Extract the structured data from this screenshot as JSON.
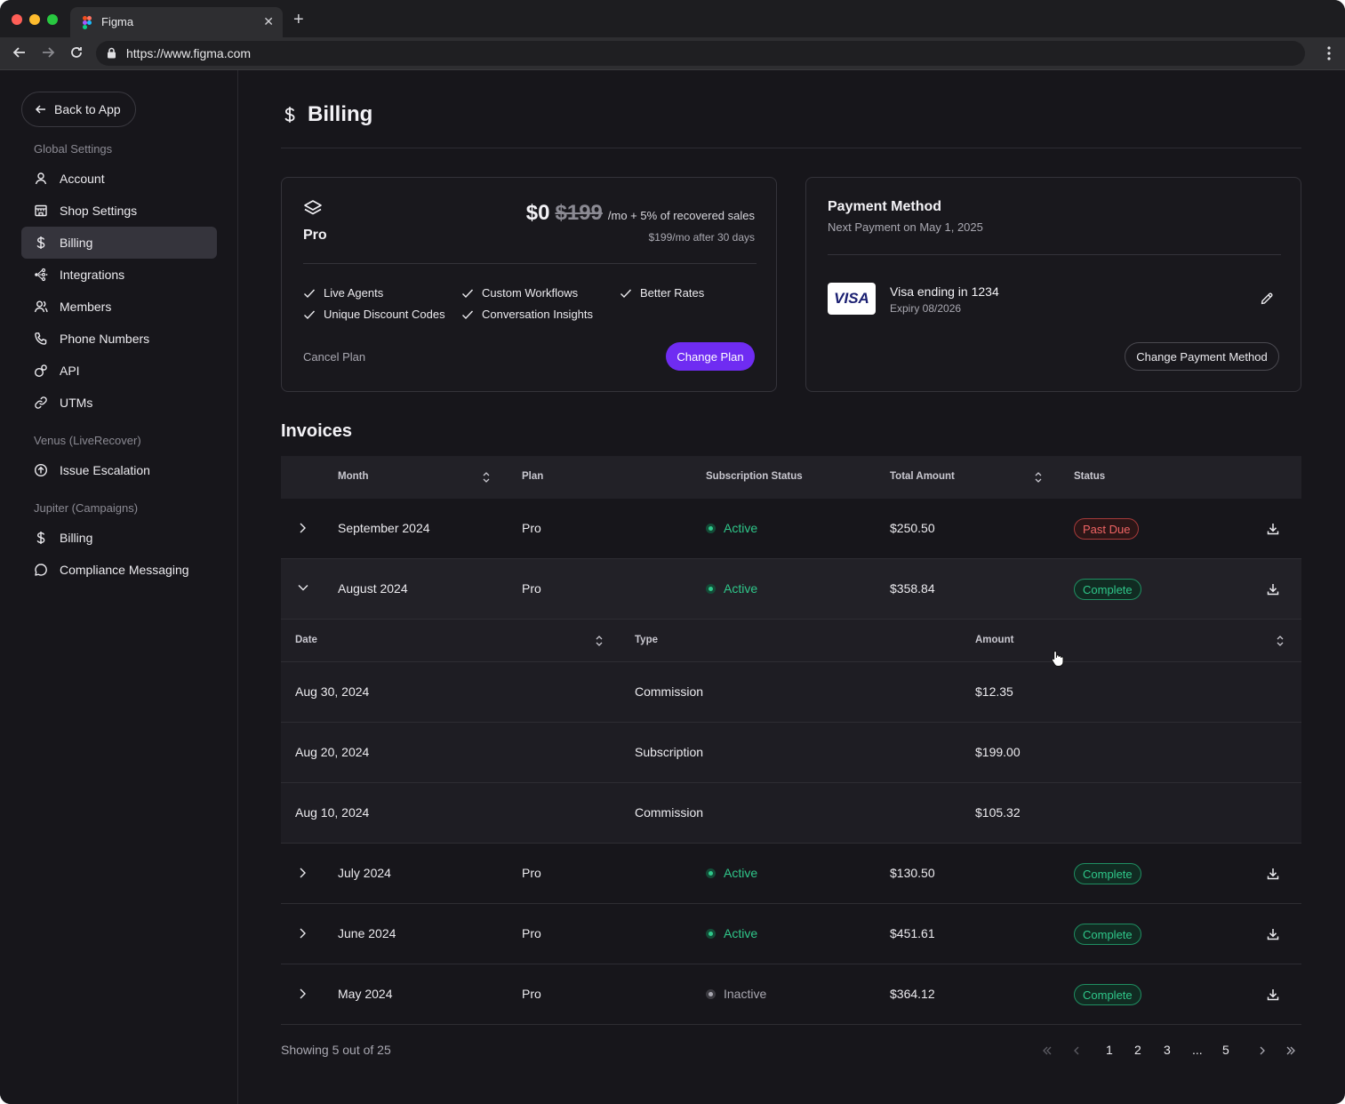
{
  "browser": {
    "tab_title": "Figma",
    "url": "https://www.figma.com"
  },
  "sidebar": {
    "back_label": "Back to App",
    "sections": [
      {
        "label": "Global Settings"
      },
      {
        "label": "Venus (LiveRecover)"
      },
      {
        "label": "Jupiter (Campaigns)"
      }
    ],
    "items": [
      {
        "label": "Account",
        "icon": "user-icon"
      },
      {
        "label": "Shop Settings",
        "icon": "store-icon"
      },
      {
        "label": "Billing",
        "icon": "dollar-icon",
        "active": true
      },
      {
        "label": "Integrations",
        "icon": "integrations-icon"
      },
      {
        "label": "Members",
        "icon": "members-icon"
      },
      {
        "label": "Phone Numbers",
        "icon": "phone-icon"
      },
      {
        "label": "API",
        "icon": "api-icon"
      },
      {
        "label": "UTMs",
        "icon": "link-icon"
      },
      {
        "label": "Issue Escalation",
        "icon": "escalation-icon"
      },
      {
        "label": "Billing",
        "icon": "dollar-icon"
      },
      {
        "label": "Compliance Messaging",
        "icon": "message-icon"
      }
    ]
  },
  "page": {
    "title": "Billing"
  },
  "plan_card": {
    "plan_name": "Pro",
    "price_now": "$0",
    "price_old": "$199",
    "price_suffix": "/mo + 5% of recovered sales",
    "price_note": "$199/mo after 30 days",
    "features": [
      "Live Agents",
      "Custom Workflows",
      "Better Rates",
      "Unique Discount Codes",
      "Conversation Insights"
    ],
    "cancel_label": "Cancel Plan",
    "change_label": "Change Plan"
  },
  "payment_card": {
    "title": "Payment Method",
    "next_payment": "Next Payment on May 1, 2025",
    "brand": "VISA",
    "card_name": "Visa ending in 1234",
    "expiry": "Expiry 08/2026",
    "change_label": "Change Payment Method"
  },
  "invoices": {
    "title": "Invoices",
    "columns": [
      "Month",
      "Plan",
      "Subscription Status",
      "Total Amount",
      "Status"
    ],
    "rows": [
      {
        "month": "September 2024",
        "plan": "Pro",
        "sub_status": "Active",
        "total": "$250.50",
        "status": "Past Due"
      },
      {
        "month": "August 2024",
        "plan": "Pro",
        "sub_status": "Active",
        "total": "$358.84",
        "status": "Complete"
      },
      {
        "month": "July 2024",
        "plan": "Pro",
        "sub_status": "Active",
        "total": "$130.50",
        "status": "Complete"
      },
      {
        "month": "June 2024",
        "plan": "Pro",
        "sub_status": "Active",
        "total": "$451.61",
        "status": "Complete"
      },
      {
        "month": "May 2024",
        "plan": "Pro",
        "sub_status": "Inactive",
        "total": "$364.12",
        "status": "Complete"
      }
    ],
    "sub_columns": [
      "Date",
      "Type",
      "Amount"
    ],
    "sub_rows": [
      {
        "date": "Aug 30, 2024",
        "type": "Commission",
        "amount": "$12.35"
      },
      {
        "date": "Aug 20, 2024",
        "type": "Subscription",
        "amount": "$199.00"
      },
      {
        "date": "Aug 10, 2024",
        "type": "Commission",
        "amount": "$105.32"
      }
    ],
    "showing": "Showing 5 out of 25",
    "pages": [
      "1",
      "2",
      "3",
      "...",
      "5"
    ]
  },
  "colors": {
    "accent": "#6f2cf2",
    "active_green": "#2fc78a",
    "past_due_red": "#ef6464"
  }
}
